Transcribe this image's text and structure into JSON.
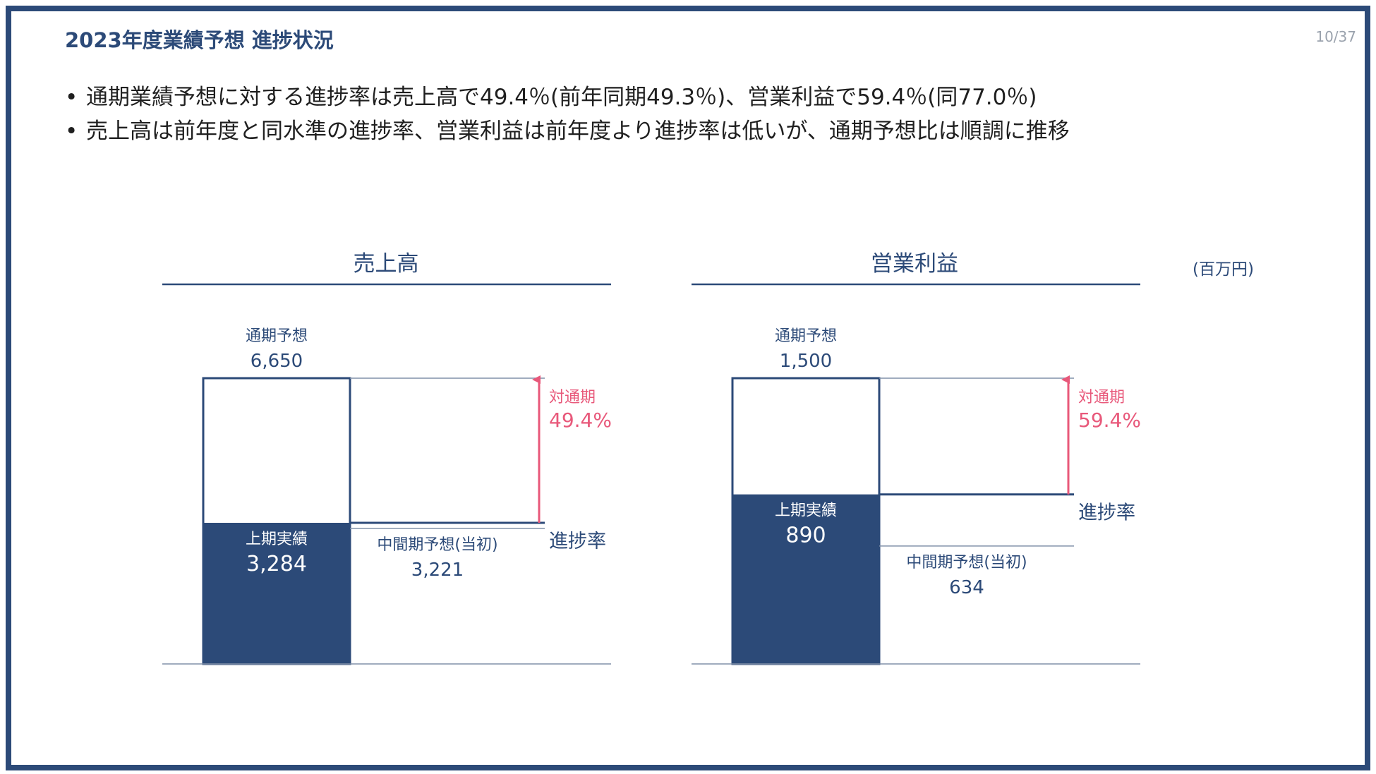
{
  "slide": {
    "title": "2023年度業績予想 進捗状況",
    "page_number": "10/37",
    "bullets": [
      "通期業績予想に対する進捗率は売上高で49.4％(前年同期49.3％)、営業利益で59.4％(同77.0％)",
      "売上高は前年度と同水準の進捗率、営業利益は前年度より進捗率は低いが、通期予想比は順調に推移"
    ],
    "unit_label": "(百万円)"
  },
  "colors": {
    "navy": "#2c4a78",
    "accent_pink": "#e8587a",
    "rule": "#8090a8"
  },
  "chart_data": [
    {
      "type": "bar",
      "title": "売上高",
      "full_year_label": "通期予想",
      "full_year_value": 6650,
      "full_year_text": "6,650",
      "h1_actual_label": "上期実績",
      "h1_actual_value": 3284,
      "h1_actual_text": "3,284",
      "interim_plan_label": "中間期予想(当初)",
      "interim_plan_value": 3221,
      "interim_plan_text": "3,221",
      "progress_vs_label": "対通期",
      "progress_rate_text": "49.4%",
      "progress_label": "進捗率"
    },
    {
      "type": "bar",
      "title": "営業利益",
      "full_year_label": "通期予想",
      "full_year_value": 1500,
      "full_year_text": "1,500",
      "h1_actual_label": "上期実績",
      "h1_actual_value": 890,
      "h1_actual_text": "890",
      "interim_plan_label": "中間期予想(当初)",
      "interim_plan_value": 634,
      "interim_plan_text": "634",
      "progress_vs_label": "対通期",
      "progress_rate_text": "59.4%",
      "progress_label": "進捗率"
    }
  ]
}
